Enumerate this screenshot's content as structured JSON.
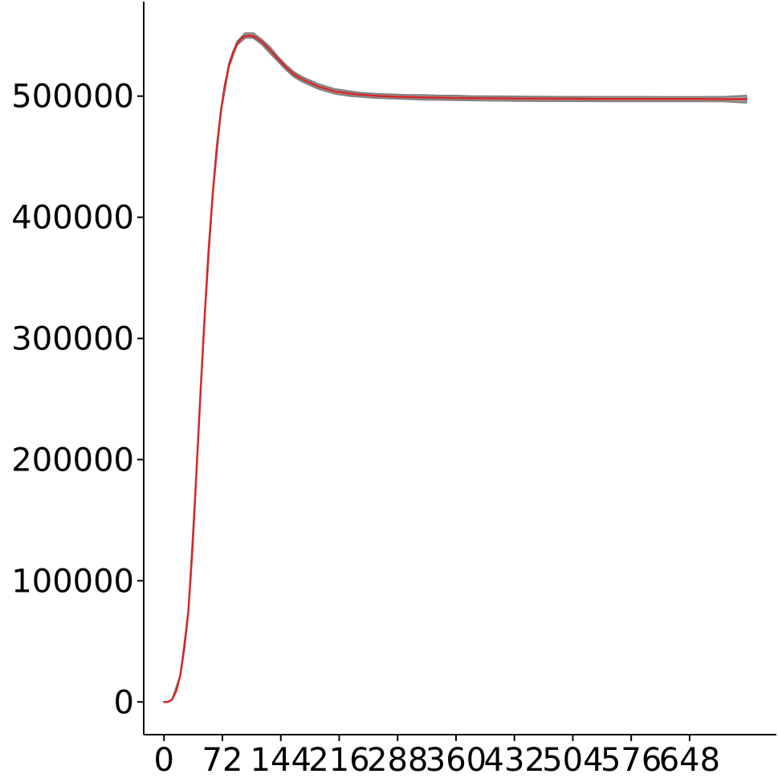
{
  "chart_data": {
    "type": "line",
    "title": "",
    "xlabel": "",
    "ylabel": "",
    "xlim": [
      -25,
      755
    ],
    "ylim": [
      -27000,
      578000
    ],
    "x_ticks": [
      0,
      72,
      144,
      216,
      288,
      360,
      432,
      504,
      576,
      648
    ],
    "x_tick_labels": [
      "0",
      "72",
      "144",
      "216",
      "288",
      "360",
      "432",
      "504",
      "576",
      "648"
    ],
    "y_ticks": [
      0,
      100000,
      200000,
      300000,
      400000,
      500000
    ],
    "y_tick_labels": [
      "0",
      "100000",
      "200000",
      "300000",
      "400000",
      "500000"
    ],
    "grid": false,
    "legend": "none",
    "series": [
      {
        "role": "replicate-band",
        "color": "#808080",
        "x": [
          0,
          5,
          10,
          20,
          30,
          40,
          50,
          60,
          70,
          80,
          90,
          100,
          110,
          120,
          130,
          140,
          150,
          160,
          170,
          180,
          190,
          200,
          210,
          220,
          230,
          240,
          260,
          280,
          300,
          320,
          340,
          360,
          380,
          400,
          430,
          460,
          500,
          540,
          580,
          620,
          660,
          690,
          718
        ],
        "upper": [
          0,
          0,
          2000,
          22000,
          75000,
          190000,
          318000,
          420000,
          488000,
          527000,
          545000,
          552000,
          552000,
          547000,
          541000,
          533000,
          526000,
          520000,
          516000,
          513000,
          510000,
          508000,
          506000,
          505000,
          504000,
          503000,
          502000,
          501500,
          501000,
          501000,
          500500,
          500500,
          500000,
          500000,
          499800,
          499700,
          499500,
          499500,
          499500,
          499400,
          499400,
          499500,
          500500
        ],
        "lower": [
          0,
          0,
          2000,
          22000,
          75000,
          190000,
          316000,
          418000,
          486000,
          524000,
          542000,
          548000,
          548000,
          543000,
          536000,
          529000,
          522000,
          516000,
          512000,
          509000,
          506000,
          504000,
          502000,
          501000,
          500000,
          499500,
          498500,
          498000,
          497500,
          497000,
          496800,
          496600,
          496400,
          496200,
          496000,
          495800,
          495800,
          495700,
          495700,
          495600,
          495600,
          495600,
          494500
        ]
      },
      {
        "role": "mean",
        "color": "#d62728",
        "x": [
          0,
          5,
          10,
          15,
          20,
          25,
          30,
          35,
          40,
          45,
          50,
          55,
          60,
          65,
          70,
          75,
          80,
          85,
          90,
          95,
          100,
          105,
          110,
          115,
          120,
          125,
          130,
          140,
          150,
          160,
          170,
          180,
          190,
          200,
          210,
          220,
          230,
          240,
          250,
          260,
          280,
          300,
          320,
          340,
          360,
          380,
          400,
          430,
          460,
          500,
          540,
          580,
          620,
          660,
          690,
          718
        ],
        "y": [
          0,
          0,
          2000,
          9000,
          22000,
          44000,
          75000,
          125000,
          190000,
          255000,
          317000,
          373000,
          419000,
          457000,
          487000,
          509000,
          525000,
          536000,
          543000,
          547500,
          549500,
          550000,
          549500,
          547500,
          545000,
          542000,
          538500,
          531000,
          524000,
          518000,
          514000,
          511000,
          508000,
          506000,
          504000,
          503000,
          502000,
          501300,
          500800,
          500300,
          499700,
          499200,
          498900,
          498700,
          498500,
          498300,
          498200,
          498000,
          497900,
          497800,
          497700,
          497700,
          497600,
          497600,
          497500,
          497500
        ]
      }
    ]
  }
}
